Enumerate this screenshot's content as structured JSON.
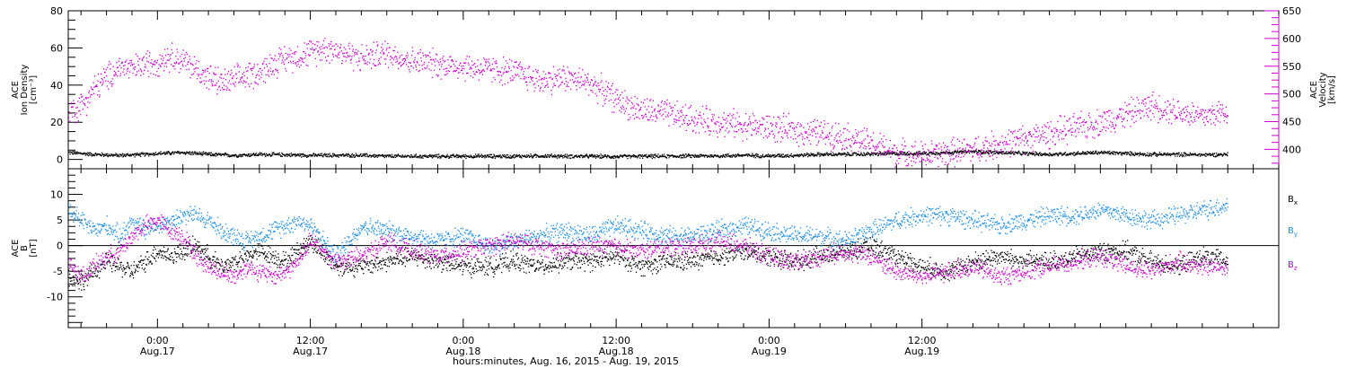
{
  "chart_data": [
    {
      "type": "scatter",
      "panel": "top",
      "ylabel_lines": [
        "ACE",
        "Ion Density",
        "[cm⁻³]"
      ],
      "ylim": [
        -5,
        80
      ],
      "yticks": [
        0,
        20,
        40,
        60,
        80
      ],
      "right_axis": {
        "ylabel_lines": [
          "ACE",
          "Velocity",
          "[km/s]"
        ],
        "ylim": [
          365,
          650
        ],
        "yticks": [
          400,
          450,
          500,
          550,
          600,
          650
        ],
        "color": "#cc00cc"
      },
      "series": [
        {
          "axis": "left",
          "color": "#000000",
          "x": [
            -7,
            -5,
            -3,
            -1,
            0,
            2,
            4,
            6,
            8,
            10,
            12,
            14,
            16,
            18,
            20,
            22,
            24,
            26,
            28,
            30,
            32,
            34,
            36,
            38,
            40,
            42,
            44,
            46,
            48,
            50,
            52,
            54,
            56,
            58,
            60,
            62,
            64,
            66,
            68,
            70,
            72,
            74,
            76,
            78,
            80,
            82,
            84
          ],
          "y": [
            4,
            3,
            2.5,
            3,
            3.5,
            4,
            3,
            2.5,
            3,
            2.8,
            2.5,
            2.5,
            2.5,
            2,
            2,
            2,
            2,
            2,
            2,
            2.2,
            2,
            2,
            1.8,
            2,
            2,
            2.2,
            2.2,
            2.5,
            2.2,
            2.5,
            3,
            3,
            3.2,
            3.5,
            3.5,
            4,
            4.5,
            4,
            3.5,
            3,
            3.5,
            4,
            3.5,
            3,
            3,
            2.8,
            3
          ]
        },
        {
          "axis": "right",
          "color": "#cc00cc",
          "x": [
            -7,
            -6,
            -5,
            -4,
            -3,
            -2,
            -1,
            0,
            1,
            2,
            3,
            4,
            5,
            6,
            7,
            8,
            9,
            10,
            11,
            12,
            13,
            14,
            16,
            18,
            20,
            22,
            24,
            26,
            28,
            30,
            32,
            34,
            36,
            38,
            40,
            42,
            44,
            46,
            48,
            50,
            52,
            54,
            56,
            58,
            60,
            62,
            64,
            66,
            68,
            70,
            72,
            74,
            76,
            78,
            80,
            82,
            84
          ],
          "y": [
            470,
            480,
            510,
            530,
            550,
            545,
            555,
            560,
            570,
            560,
            545,
            530,
            520,
            525,
            535,
            540,
            555,
            565,
            570,
            575,
            585,
            580,
            565,
            575,
            560,
            555,
            550,
            545,
            540,
            525,
            530,
            520,
            490,
            470,
            465,
            455,
            450,
            445,
            440,
            435,
            430,
            425,
            410,
            395,
            390,
            395,
            400,
            410,
            420,
            430,
            440,
            450,
            465,
            480,
            470,
            460,
            470
          ]
        }
      ]
    },
    {
      "type": "scatter",
      "panel": "bottom",
      "ylabel_lines": [
        "ACE",
        "B",
        "[nT]"
      ],
      "ylim": [
        -16,
        15
      ],
      "yticks": [
        -10,
        -5,
        0,
        5,
        10
      ],
      "zero_line": true,
      "series": [
        {
          "name": "Bx",
          "color": "#000000",
          "x": [
            -7,
            -6,
            -5,
            -4,
            -3,
            -2,
            -1,
            0,
            1,
            2,
            3,
            4,
            5,
            6,
            7,
            8,
            9,
            10,
            11,
            12,
            14,
            16,
            18,
            20,
            22,
            24,
            26,
            28,
            30,
            32,
            34,
            36,
            38,
            40,
            42,
            44,
            46,
            48,
            50,
            52,
            54,
            56,
            58,
            60,
            62,
            64,
            66,
            68,
            70,
            72,
            74,
            76,
            78,
            80,
            82,
            84
          ],
          "y": [
            -6,
            -7,
            -5,
            -3,
            -4,
            -5,
            -3,
            -1,
            -2,
            -1,
            0,
            -2,
            -4,
            -3,
            -2,
            -1,
            -2,
            -3,
            -1,
            1,
            -4,
            -4,
            -3,
            -2,
            -3,
            -4,
            -4,
            -3,
            -4,
            -3,
            -3,
            -2,
            -4,
            -3,
            -3,
            -2,
            -1,
            -2,
            -3,
            -2,
            -1,
            0,
            -2,
            -4,
            -5,
            -3,
            -2,
            -3,
            -3,
            -2,
            -1,
            -1,
            -3,
            -4,
            -2,
            -3
          ]
        },
        {
          "name": "By",
          "color": "#1e90e6",
          "x": [
            -7,
            -6,
            -5,
            -4,
            -3,
            -2,
            -1,
            0,
            1,
            2,
            3,
            4,
            5,
            6,
            7,
            8,
            9,
            10,
            11,
            12,
            14,
            16,
            18,
            20,
            22,
            24,
            26,
            28,
            30,
            32,
            34,
            36,
            38,
            40,
            42,
            44,
            46,
            48,
            50,
            52,
            54,
            56,
            58,
            60,
            62,
            64,
            66,
            68,
            70,
            72,
            74,
            76,
            78,
            80,
            82,
            84
          ],
          "y": [
            7,
            5,
            3,
            4,
            2,
            5,
            3,
            4,
            5,
            6,
            6,
            5,
            3,
            2,
            1,
            2,
            3,
            4,
            5,
            4,
            -2,
            4,
            3,
            2,
            1,
            2,
            0,
            1,
            2,
            3,
            2,
            4,
            3,
            2,
            2,
            3,
            4,
            3,
            2,
            2,
            1,
            3,
            5,
            6,
            6,
            5,
            4,
            5,
            6,
            6,
            7,
            6,
            5,
            6,
            7,
            8
          ]
        },
        {
          "name": "Bz",
          "color": "#cc00cc",
          "x": [
            -7,
            -6,
            -5,
            -4,
            -3,
            -2,
            -1,
            0,
            1,
            2,
            3,
            4,
            5,
            6,
            7,
            8,
            9,
            10,
            11,
            12,
            14,
            16,
            18,
            20,
            22,
            24,
            26,
            28,
            30,
            32,
            34,
            36,
            38,
            40,
            42,
            44,
            46,
            48,
            50,
            52,
            54,
            56,
            58,
            60,
            62,
            64,
            66,
            68,
            70,
            72,
            74,
            76,
            78,
            80,
            82,
            84
          ],
          "y": [
            -3,
            -6,
            -4,
            -2,
            -1,
            2,
            4,
            5,
            3,
            2,
            -2,
            -4,
            -5,
            -6,
            -4,
            -5,
            -6,
            -5,
            -3,
            1,
            -3,
            -2,
            1,
            -1,
            -2,
            -1,
            0,
            1,
            0,
            -1,
            0,
            0,
            -1,
            0,
            0,
            1,
            0,
            -2,
            -3,
            -2,
            -1,
            -2,
            -5,
            -6,
            -5,
            -4,
            -6,
            -5,
            -4,
            -3,
            -2,
            -4,
            -5,
            -3,
            -4,
            -4
          ]
        }
      ]
    }
  ],
  "x_axis": {
    "xlim": [
      -7,
      88
    ],
    "major_ticks": [
      {
        "x": 0,
        "time": "0:00",
        "date": "Aug.17"
      },
      {
        "x": 12,
        "time": "12:00",
        "date": "Aug.17"
      },
      {
        "x": 24,
        "time": "0:00",
        "date": "Aug.18"
      },
      {
        "x": 36,
        "time": "12:00",
        "date": "Aug.18"
      },
      {
        "x": 48,
        "time": "0:00",
        "date": "Aug.19"
      },
      {
        "x": 60,
        "time": "12:00",
        "date": "Aug.19"
      }
    ],
    "minor_step": 2,
    "xlabel": "hours:minutes, Aug. 16, 2015 - Aug. 19, 2015"
  },
  "legend": {
    "Bx": {
      "base": "B",
      "sub": "x",
      "color": "#000000"
    },
    "By": {
      "base": "B",
      "sub": "y",
      "color": "#1e90e6"
    },
    "Bz": {
      "base": "B",
      "sub": "z",
      "color": "#cc00cc"
    }
  }
}
